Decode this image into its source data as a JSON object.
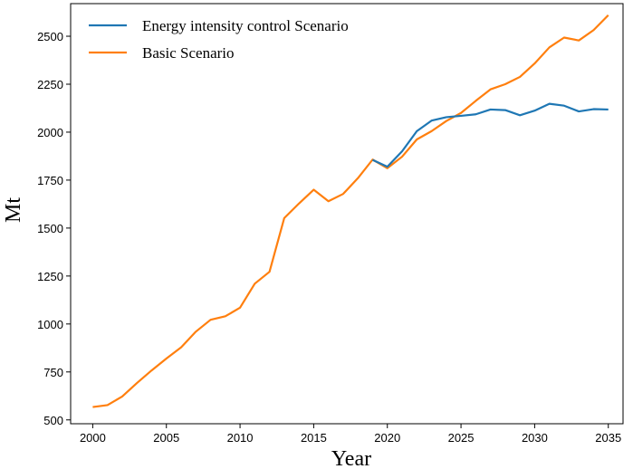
{
  "chart_data": {
    "type": "line",
    "title": "",
    "xlabel": "Year",
    "ylabel": "Mt",
    "xlim": [
      1998.5,
      2036
    ],
    "ylim": [
      480,
      2670
    ],
    "xticks": [
      2000,
      2005,
      2010,
      2015,
      2020,
      2025,
      2030,
      2035
    ],
    "yticks": [
      500,
      750,
      1000,
      1250,
      1500,
      1750,
      2000,
      2250,
      2500
    ],
    "grid": false,
    "legend_position": "top-left",
    "series": [
      {
        "name": "Energy intensity control Scenario",
        "color": "#1f77b4",
        "x": [
          2019,
          2020,
          2021,
          2022,
          2023,
          2024,
          2025,
          2026,
          2027,
          2028,
          2029,
          2030,
          2031,
          2032,
          2033,
          2034,
          2035
        ],
        "values": [
          1855,
          1820,
          1900,
          2005,
          2060,
          2078,
          2085,
          2093,
          2118,
          2115,
          2088,
          2112,
          2148,
          2138,
          2108,
          2120,
          2118
        ]
      },
      {
        "name": "Basic Scenario",
        "color": "#ff7f0e",
        "x": [
          2000,
          2001,
          2002,
          2003,
          2004,
          2005,
          2006,
          2007,
          2008,
          2009,
          2010,
          2011,
          2012,
          2013,
          2014,
          2015,
          2016,
          2017,
          2018,
          2019,
          2020,
          2021,
          2022,
          2023,
          2024,
          2025,
          2026,
          2027,
          2028,
          2029,
          2030,
          2031,
          2032,
          2033,
          2034,
          2035
        ],
        "values": [
          567,
          577,
          622,
          692,
          758,
          820,
          878,
          960,
          1022,
          1040,
          1085,
          1210,
          1272,
          1552,
          1628,
          1700,
          1640,
          1678,
          1760,
          1857,
          1812,
          1872,
          1962,
          2005,
          2058,
          2100,
          2163,
          2223,
          2250,
          2288,
          2358,
          2442,
          2493,
          2478,
          2532,
          2610
        ]
      }
    ]
  }
}
